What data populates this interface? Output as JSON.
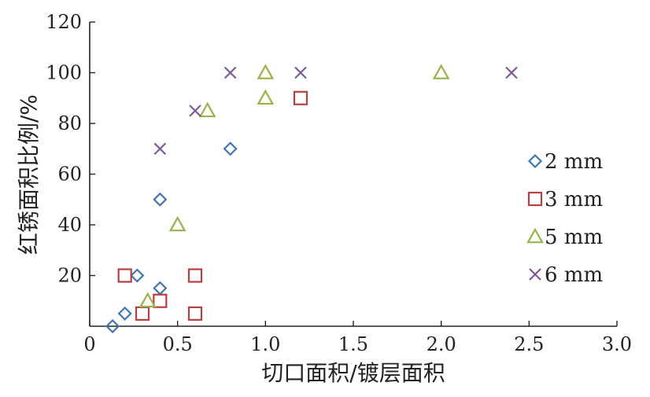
{
  "chart_data": {
    "type": "scatter",
    "title": "",
    "xlabel": "切口面积/镀层面积",
    "ylabel": "红锈面积比例/%",
    "xlim": [
      0,
      3.0
    ],
    "ylim": [
      0,
      120
    ],
    "x_ticks": [
      "0",
      "0.5",
      "1.0",
      "1.5",
      "2.0",
      "2.5",
      "3.0"
    ],
    "y_ticks": [
      "20",
      "40",
      "60",
      "80",
      "100",
      "120"
    ],
    "grid": false,
    "legend_position": "right",
    "series": [
      {
        "name": "2 mm",
        "marker": "diamond",
        "color": "#3f74b3",
        "points": [
          {
            "x": 0.13,
            "y": 0
          },
          {
            "x": 0.2,
            "y": 5
          },
          {
            "x": 0.27,
            "y": 20
          },
          {
            "x": 0.4,
            "y": 15
          },
          {
            "x": 0.4,
            "y": 50
          },
          {
            "x": 0.8,
            "y": 70
          }
        ]
      },
      {
        "name": "3 mm",
        "marker": "square",
        "color": "#b5403f",
        "points": [
          {
            "x": 0.2,
            "y": 20
          },
          {
            "x": 0.3,
            "y": 5
          },
          {
            "x": 0.4,
            "y": 10
          },
          {
            "x": 0.6,
            "y": 5
          },
          {
            "x": 0.6,
            "y": 20
          },
          {
            "x": 1.2,
            "y": 90
          }
        ]
      },
      {
        "name": "5 mm",
        "marker": "triangle",
        "color": "#97b34a",
        "points": [
          {
            "x": 0.33,
            "y": 10
          },
          {
            "x": 0.5,
            "y": 40
          },
          {
            "x": 0.67,
            "y": 85
          },
          {
            "x": 1.0,
            "y": 90
          },
          {
            "x": 1.0,
            "y": 100
          },
          {
            "x": 2.0,
            "y": 100
          }
        ]
      },
      {
        "name": "6 mm",
        "marker": "cross",
        "color": "#7a5a9a",
        "points": [
          {
            "x": 0.4,
            "y": 70
          },
          {
            "x": 0.6,
            "y": 85
          },
          {
            "x": 0.8,
            "y": 100
          },
          {
            "x": 1.2,
            "y": 100
          },
          {
            "x": 2.4,
            "y": 100
          }
        ]
      }
    ]
  }
}
